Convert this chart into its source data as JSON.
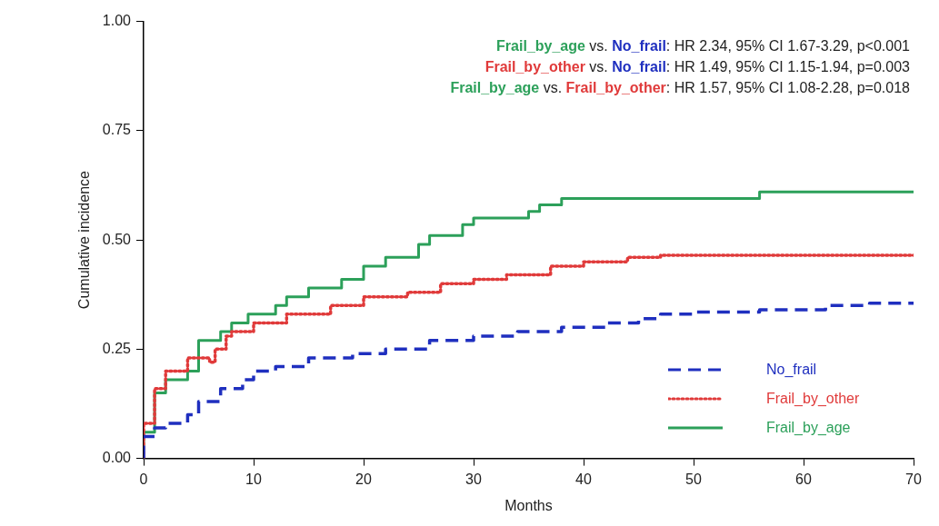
{
  "chart_data": {
    "type": "step",
    "xlabel": "Months",
    "ylabel": "Cumulative incidence",
    "xlim": [
      0,
      70
    ],
    "xticks": [
      0,
      10,
      20,
      30,
      40,
      50,
      60,
      70
    ],
    "ylim": [
      0,
      1
    ],
    "yticks": [
      {
        "value": 0,
        "label": "0.00"
      },
      {
        "value": 0.25,
        "label": "0.25"
      },
      {
        "value": 0.5,
        "label": "0.50"
      },
      {
        "value": 0.75,
        "label": "0.75"
      },
      {
        "value": 1,
        "label": "1.00"
      }
    ],
    "grid": false,
    "legend": "bottom right",
    "marker": "none",
    "annotations": [
      "Frail_by_age vs. No_frail: HR 2.34, 95% CI 1.67-3.29, p<0.001",
      "Frail_by_other vs. No_frail: HR 1.49, 95% CI 1.15-1.94, p=0.003",
      "Frail_by_age vs. Frail_by_other: HR 1.57, 95% CI 1.08-2.28, p=0.018"
    ],
    "series": [
      {
        "name": "No_frail",
        "color": "#1f2fbf",
        "line_style": "dashed",
        "x": [
          0,
          1,
          2,
          4,
          5,
          7,
          9,
          10,
          12,
          15,
          19,
          22,
          26,
          30,
          34,
          38,
          42,
          45,
          47,
          50,
          56,
          62,
          66,
          70
        ],
        "values": [
          0,
          0.05,
          0.07,
          0.08,
          0.1,
          0.13,
          0.16,
          0.18,
          0.2,
          0.21,
          0.23,
          0.24,
          0.25,
          0.27,
          0.28,
          0.29,
          0.3,
          0.31,
          0.32,
          0.33,
          0.335,
          0.34,
          0.35,
          0.355
        ]
      },
      {
        "name": "Frail_by_other",
        "color": "#e03a3a",
        "line_style": "dotted",
        "x": [
          0,
          1,
          2,
          4,
          6,
          6.5,
          7.5,
          8,
          10,
          13,
          17,
          20,
          24,
          27,
          30,
          33,
          37,
          40,
          44,
          47,
          57,
          70
        ],
        "values": [
          0,
          0.08,
          0.16,
          0.2,
          0.23,
          0.22,
          0.25,
          0.28,
          0.29,
          0.31,
          0.33,
          0.35,
          0.37,
          0.38,
          0.4,
          0.41,
          0.42,
          0.44,
          0.45,
          0.46,
          0.465,
          0.465
        ]
      },
      {
        "name": "Frail_by_age",
        "color": "#2ca05a",
        "line_style": "solid",
        "x": [
          0,
          1,
          2,
          4,
          5,
          7,
          8,
          9.5,
          12,
          13,
          15,
          18,
          20,
          22,
          25,
          26,
          29,
          30,
          35,
          36,
          38,
          56,
          57,
          70
        ],
        "values": [
          0,
          0.06,
          0.15,
          0.18,
          0.2,
          0.27,
          0.29,
          0.31,
          0.33,
          0.35,
          0.37,
          0.39,
          0.41,
          0.44,
          0.46,
          0.49,
          0.51,
          0.535,
          0.55,
          0.565,
          0.58,
          0.595,
          0.61,
          0.61
        ]
      }
    ]
  }
}
